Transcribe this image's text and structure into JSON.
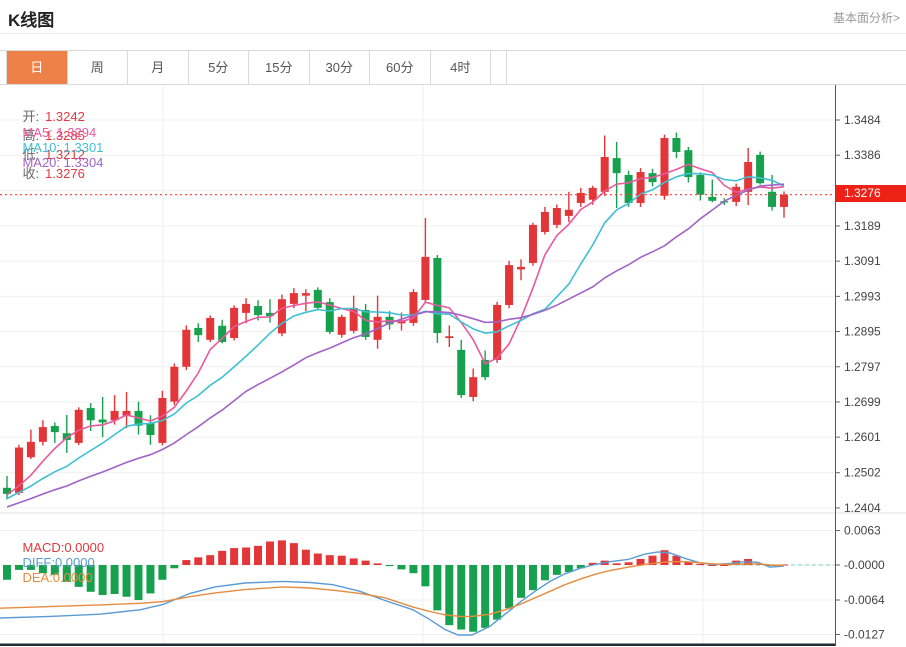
{
  "header": {
    "title": "K线图",
    "link": "基本面分析>"
  },
  "tabs": {
    "items": [
      {
        "label": "日",
        "active": true
      },
      {
        "label": "周",
        "active": false
      },
      {
        "label": "月",
        "active": false
      },
      {
        "label": "5分",
        "active": false
      },
      {
        "label": "15分",
        "active": false
      },
      {
        "label": "30分",
        "active": false
      },
      {
        "label": "60分",
        "active": false
      },
      {
        "label": "4时",
        "active": false
      }
    ]
  },
  "legend": {
    "open_label": "开:",
    "open_value": "1.3242",
    "high_label": "高:",
    "high_value": "1.3285",
    "low_label": "低:",
    "low_value": "1.3212",
    "close_label": "收:",
    "close_value": "1.3276",
    "ma5": "MA5: 1.3294",
    "ma10": "MA10: 1.3301",
    "ma20": "MA20: 1.3304"
  },
  "macd_legend": {
    "macd": "MACD:0.0000",
    "diff": "DIFF:0.0000",
    "dea": "DEA:0.0000"
  },
  "price_axis": {
    "labels": [
      "1.3484",
      "1.3386",
      "",
      "1.3189",
      "1.3091",
      "1.2993",
      "1.2895",
      "1.2797",
      "1.2699",
      "1.2601",
      "1.2502",
      "1.2404"
    ],
    "current_badge": "1.3276"
  },
  "macd_axis": {
    "labels": [
      "0.0063",
      "-0.0000",
      "-0.0064",
      "-0.0127"
    ]
  },
  "colors": {
    "up": "#e23639",
    "down": "#17a14e",
    "ma5": "#e85a9d",
    "ma10": "#3ec0d4",
    "ma20": "#a263c8",
    "diff": "#5b9bd5",
    "dea": "#e78b3d",
    "price_line": "#ff3b30",
    "badge_bg": "#ee2116",
    "grid": "#efefef",
    "vgrid": "#eef0f2",
    "axis": "#555",
    "bottom_bar": "#212b36",
    "zero_dash": "#7ecfc4",
    "tab_active_bg": "#ee8147",
    "value_red": "#e0393f"
  },
  "chart_data": {
    "type": "candlestick+macd",
    "title": "K线图",
    "ohlc_display": {
      "open": 1.3242,
      "high": 1.3285,
      "low": 1.3212,
      "close": 1.3276
    },
    "ma_display": {
      "ma5": 1.3294,
      "ma10": 1.3301,
      "ma20": 1.3304
    },
    "current_price": 1.3276,
    "price_gridlines": [
      1.3484,
      1.3386,
      1.3287,
      1.3189,
      1.3091,
      1.2993,
      1.2895,
      1.2797,
      1.2699,
      1.2601,
      1.2502,
      1.2404
    ],
    "macd_gridlines": [
      0.0063,
      0.0,
      -0.0064,
      -0.0127
    ],
    "legend_position": "top-left",
    "candles_ohlc_order": "open,high,low,close",
    "candles": [
      [
        1.246,
        1.2493,
        1.2428,
        1.2443
      ],
      [
        1.2446,
        1.258,
        1.244,
        1.2572
      ],
      [
        1.2545,
        1.2622,
        1.254,
        1.2588
      ],
      [
        1.2588,
        1.2648,
        1.2578,
        1.2629
      ],
      [
        1.2632,
        1.2642,
        1.2585,
        1.2615
      ],
      [
        1.2612,
        1.2663,
        1.2557,
        1.2593
      ],
      [
        1.2585,
        1.2684,
        1.2579,
        1.2677
      ],
      [
        1.2682,
        1.2696,
        1.2618,
        1.2648
      ],
      [
        1.265,
        1.2713,
        1.2601,
        1.2642
      ],
      [
        1.2648,
        1.2718,
        1.2636,
        1.2674
      ],
      [
        1.2661,
        1.2727,
        1.2626,
        1.2674
      ],
      [
        1.2674,
        1.27,
        1.2608,
        1.2633
      ],
      [
        1.264,
        1.2662,
        1.258,
        1.2607
      ],
      [
        1.2585,
        1.273,
        1.2578,
        1.271
      ],
      [
        1.27,
        1.2806,
        1.269,
        1.2797
      ],
      [
        1.2797,
        1.2912,
        1.2788,
        1.29
      ],
      [
        1.2905,
        1.2918,
        1.2866,
        1.2885
      ],
      [
        1.2872,
        1.294,
        1.2866,
        1.2933
      ],
      [
        1.2911,
        1.2928,
        1.2862,
        1.2866
      ],
      [
        1.2877,
        1.2968,
        1.287,
        1.2961
      ],
      [
        1.2947,
        1.2988,
        1.2918,
        1.2972
      ],
      [
        1.2966,
        1.2982,
        1.2926,
        1.2941
      ],
      [
        1.2947,
        1.2985,
        1.292,
        1.2938
      ],
      [
        1.289,
        1.2998,
        1.2882,
        1.2985
      ],
      [
        1.2972,
        1.3016,
        1.296,
        1.3002
      ],
      [
        1.2995,
        1.3013,
        1.2952,
        1.3002
      ],
      [
        1.3011,
        1.3018,
        1.2955,
        1.2961
      ],
      [
        1.2977,
        1.2988,
        1.2888,
        1.2894
      ],
      [
        1.2886,
        1.2942,
        1.2878,
        1.2936
      ],
      [
        1.2897,
        1.2995,
        1.289,
        1.2961
      ],
      [
        1.2955,
        1.2972,
        1.2872,
        1.288
      ],
      [
        1.2872,
        1.2995,
        1.2847,
        1.2936
      ],
      [
        1.2936,
        1.2952,
        1.29,
        1.2915
      ],
      [
        1.2918,
        1.2948,
        1.2898,
        1.2925
      ],
      [
        1.2919,
        1.3013,
        1.2911,
        1.3005
      ],
      [
        1.2983,
        1.3211,
        1.2976,
        1.3103
      ],
      [
        1.31,
        1.3108,
        1.2863,
        1.2891
      ],
      [
        1.2877,
        1.2912,
        1.2852,
        1.2882
      ],
      [
        1.2844,
        1.2872,
        1.271,
        1.2718
      ],
      [
        1.2713,
        1.2792,
        1.2701,
        1.2768
      ],
      [
        1.2816,
        1.2842,
        1.276,
        1.2768
      ],
      [
        1.2816,
        1.2978,
        1.2808,
        1.2969
      ],
      [
        1.2969,
        1.3092,
        1.296,
        1.308
      ],
      [
        1.3068,
        1.3096,
        1.3038,
        1.3075
      ],
      [
        1.3086,
        1.3198,
        1.3078,
        1.3192
      ],
      [
        1.3172,
        1.3242,
        1.3165,
        1.3228
      ],
      [
        1.3192,
        1.3249,
        1.3183,
        1.3239
      ],
      [
        1.3217,
        1.3284,
        1.32,
        1.3234
      ],
      [
        1.3253,
        1.3295,
        1.3242,
        1.3281
      ],
      [
        1.3262,
        1.3301,
        1.3248,
        1.3295
      ],
      [
        1.3284,
        1.3441,
        1.3273,
        1.3381
      ],
      [
        1.3378,
        1.3423,
        1.3239,
        1.3336
      ],
      [
        1.3331,
        1.3343,
        1.3242,
        1.3253
      ],
      [
        1.3253,
        1.335,
        1.3242,
        1.3339
      ],
      [
        1.3336,
        1.3348,
        1.3299,
        1.3311
      ],
      [
        1.3273,
        1.3443,
        1.3262,
        1.3434
      ],
      [
        1.3434,
        1.3449,
        1.3378,
        1.3395
      ],
      [
        1.34,
        1.3409,
        1.331,
        1.3325
      ],
      [
        1.3331,
        1.3338,
        1.326,
        1.3276
      ],
      [
        1.327,
        1.3318,
        1.3255,
        1.3259
      ],
      [
        1.3258,
        1.3266,
        1.3247,
        1.3256
      ],
      [
        1.3256,
        1.3307,
        1.3244,
        1.3298
      ],
      [
        1.3284,
        1.3406,
        1.3247,
        1.3367
      ],
      [
        1.3387,
        1.3396,
        1.3304,
        1.3308
      ],
      [
        1.3284,
        1.3331,
        1.3232,
        1.3242
      ],
      [
        1.3242,
        1.3285,
        1.3212,
        1.3276
      ]
    ],
    "prehistory_closes": [
      1.234,
      1.2355,
      1.237,
      1.238,
      1.2385,
      1.239,
      1.2395,
      1.24,
      1.2405,
      1.241,
      1.24,
      1.241,
      1.242,
      1.243,
      1.244,
      1.2445,
      1.244,
      1.2435,
      1.2438
    ],
    "ma_periods": [
      5,
      10,
      20
    ],
    "macd": {
      "display": {
        "macd": 0.0,
        "diff": 0.0,
        "dea": 0.0
      },
      "histogram": [
        -0.0027,
        -0.0009,
        -0.0009,
        -0.0015,
        -0.0018,
        -0.0031,
        -0.004,
        -0.0049,
        -0.0055,
        -0.0053,
        -0.0058,
        -0.0064,
        -0.0052,
        -0.0027,
        -0.0006,
        0.0009,
        0.0014,
        0.0018,
        0.0026,
        0.0031,
        0.0032,
        0.0035,
        0.0043,
        0.0045,
        0.004,
        0.0028,
        0.0021,
        0.0018,
        0.0017,
        0.0012,
        0.0008,
        0.0003,
        -0.0002,
        -0.0008,
        -0.0015,
        -0.0039,
        -0.0083,
        -0.011,
        -0.0118,
        -0.0122,
        -0.0115,
        -0.01,
        -0.0079,
        -0.006,
        -0.0046,
        -0.0028,
        -0.0018,
        -0.0013,
        -0.0006,
        0.0004,
        0.0008,
        0.0003,
        0.0005,
        0.0011,
        0.0017,
        0.0027,
        0.0017,
        0.0005,
        0.0002,
        0.0,
        0.0,
        0.0008,
        0.0011,
        0.0002,
        -0.0001,
        0.0001
      ],
      "diff_line": [
        [
          0,
          -0.0097
        ],
        [
          50,
          -0.0094
        ],
        [
          100,
          -0.009
        ],
        [
          140,
          -0.0082
        ],
        [
          163,
          -0.0072
        ],
        [
          190,
          -0.0052
        ],
        [
          215,
          -0.004
        ],
        [
          245,
          -0.0033
        ],
        [
          283,
          -0.003
        ],
        [
          310,
          -0.0032
        ],
        [
          333,
          -0.0036
        ],
        [
          360,
          -0.0048
        ],
        [
          385,
          -0.0065
        ],
        [
          413,
          -0.0082
        ],
        [
          430,
          -0.01
        ],
        [
          445,
          -0.0118
        ],
        [
          458,
          -0.0128
        ],
        [
          472,
          -0.0128
        ],
        [
          490,
          -0.0112
        ],
        [
          505,
          -0.009
        ],
        [
          520,
          -0.0068
        ],
        [
          535,
          -0.0048
        ],
        [
          550,
          -0.003
        ],
        [
          565,
          -0.0016
        ],
        [
          580,
          -0.0006
        ],
        [
          595,
          0.0001
        ],
        [
          610,
          0.0006
        ],
        [
          628,
          0.001
        ],
        [
          645,
          0.002
        ],
        [
          658,
          0.0024
        ],
        [
          670,
          0.0022
        ],
        [
          685,
          0.0012
        ],
        [
          700,
          0.0004
        ],
        [
          715,
          0.0001
        ],
        [
          730,
          0.0003
        ],
        [
          745,
          0.0006
        ],
        [
          758,
          0.0005
        ],
        [
          770,
          -0.0004
        ],
        [
          784,
          -0.0002
        ]
      ],
      "dea_line": [
        [
          0,
          -0.0079
        ],
        [
          50,
          -0.0076
        ],
        [
          100,
          -0.0073
        ],
        [
          140,
          -0.007
        ],
        [
          163,
          -0.0067
        ],
        [
          190,
          -0.0058
        ],
        [
          215,
          -0.0051
        ],
        [
          245,
          -0.0045
        ],
        [
          283,
          -0.004
        ],
        [
          310,
          -0.0042
        ],
        [
          333,
          -0.0046
        ],
        [
          360,
          -0.0052
        ],
        [
          385,
          -0.006
        ],
        [
          413,
          -0.0077
        ],
        [
          430,
          -0.0085
        ],
        [
          445,
          -0.0091
        ],
        [
          460,
          -0.0094
        ],
        [
          472,
          -0.0094
        ],
        [
          490,
          -0.009
        ],
        [
          505,
          -0.0082
        ],
        [
          520,
          -0.0072
        ],
        [
          535,
          -0.006
        ],
        [
          550,
          -0.0048
        ],
        [
          565,
          -0.0036
        ],
        [
          580,
          -0.0026
        ],
        [
          595,
          -0.0017
        ],
        [
          610,
          -0.001
        ],
        [
          628,
          -0.0004
        ],
        [
          645,
          0.0001
        ],
        [
          658,
          0.0004
        ],
        [
          670,
          0.0006
        ],
        [
          685,
          0.0006
        ],
        [
          700,
          0.0004
        ],
        [
          715,
          0.0002
        ],
        [
          730,
          0.0001
        ],
        [
          745,
          0.0002
        ],
        [
          758,
          0.0002
        ],
        [
          770,
          0.0
        ],
        [
          784,
          -0.0001
        ]
      ]
    }
  }
}
